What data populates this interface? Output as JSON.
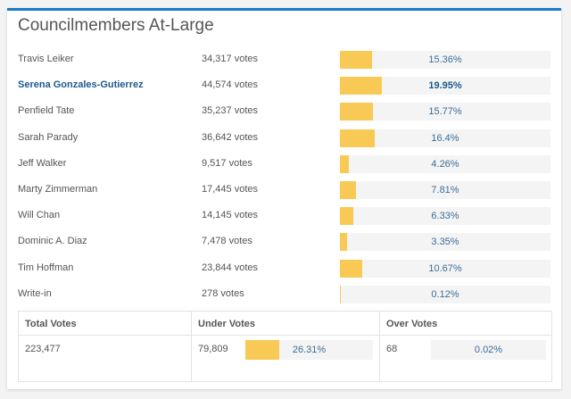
{
  "title": "Councilmembers At-Large",
  "colors": {
    "accent": "#1a7bc9",
    "bar_fill": "#f9c955",
    "winner_text": "#1d5a8e"
  },
  "candidates": [
    {
      "name": "Travis Leiker",
      "votes": "34,317 votes",
      "percent_label": "15.36%",
      "percent": 15.36,
      "winner": false
    },
    {
      "name": "Serena Gonzales-Gutierrez",
      "votes": "44,574 votes",
      "percent_label": "19.95%",
      "percent": 19.95,
      "winner": true
    },
    {
      "name": "Penfield Tate",
      "votes": "35,237 votes",
      "percent_label": "15.77%",
      "percent": 15.77,
      "winner": false
    },
    {
      "name": "Sarah Parady",
      "votes": "36,642 votes",
      "percent_label": "16.4%",
      "percent": 16.4,
      "winner": false
    },
    {
      "name": "Jeff Walker",
      "votes": "9,517 votes",
      "percent_label": "4.26%",
      "percent": 4.26,
      "winner": false
    },
    {
      "name": "Marty Zimmerman",
      "votes": "17,445 votes",
      "percent_label": "7.81%",
      "percent": 7.81,
      "winner": false
    },
    {
      "name": "Will Chan",
      "votes": "14,145 votes",
      "percent_label": "6.33%",
      "percent": 6.33,
      "winner": false
    },
    {
      "name": "Dominic A. Diaz",
      "votes": "7,478 votes",
      "percent_label": "3.35%",
      "percent": 3.35,
      "winner": false
    },
    {
      "name": "Tim Hoffman",
      "votes": "23,844 votes",
      "percent_label": "10.67%",
      "percent": 10.67,
      "winner": false
    },
    {
      "name": "Write-in",
      "votes": "278 votes",
      "percent_label": "0.12%",
      "percent": 0.12,
      "winner": false
    }
  ],
  "summary": {
    "total": {
      "label": "Total Votes",
      "value": "223,477"
    },
    "under": {
      "label": "Under Votes",
      "value": "79,809",
      "percent_label": "26.31%",
      "percent": 26.31
    },
    "over": {
      "label": "Over Votes",
      "value": "68",
      "percent_label": "0.02%",
      "percent": 0.02
    }
  }
}
